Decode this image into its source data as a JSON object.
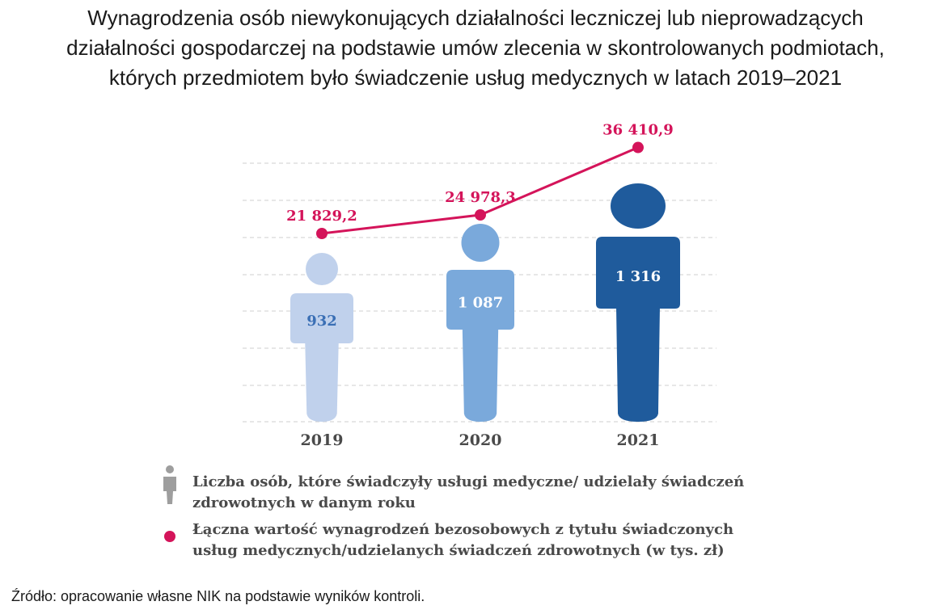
{
  "title_lines": [
    "Wynagrodzenia osób niewykonujących działalności leczniczej lub nieprowadzących",
    "działalności gospodarczej na podstawie umów zlecenia w skontrolowanych podmiotach,",
    "których przedmiotem było świadczenie usług medycznych w latach 2019–2021"
  ],
  "chart_data": {
    "type": "line",
    "categories": [
      "2019",
      "2020",
      "2021"
    ],
    "series": [
      {
        "values": [
          21829.2,
          24978.3,
          36410.9
        ],
        "labels": [
          "21 829,2",
          "24 978,3",
          "36 410,9"
        ],
        "color": "#d4145a"
      }
    ],
    "people_counts": {
      "values": [
        932,
        1087,
        1316
      ],
      "labels": [
        "932",
        "1 087",
        "1 316"
      ],
      "colors": [
        "#c0d1ec",
        "#7aa9db",
        "#1f5b9c"
      ],
      "label_colors": [
        "#3a6fb5",
        "#ffffff",
        "#ffffff"
      ]
    },
    "grid": true
  },
  "legend": {
    "people_lines": [
      "Liczba osób, które świadczyły usługi medyczne/ udzielały świadczeń",
      "zdrowotnych w danym roku"
    ],
    "people_icon_color": "#9e9e9e",
    "line_lines": [
      "Łączna wartość wynagrodzeń bezosobowych z tytułu świadczonych",
      "usług medycznych/udzielanych świadczeń zdrowotnych (w tys. zł)"
    ],
    "line_marker_color": "#d4145a"
  },
  "source": "Źródło: opracowanie własne NIK na podstawie wyników kontroli."
}
